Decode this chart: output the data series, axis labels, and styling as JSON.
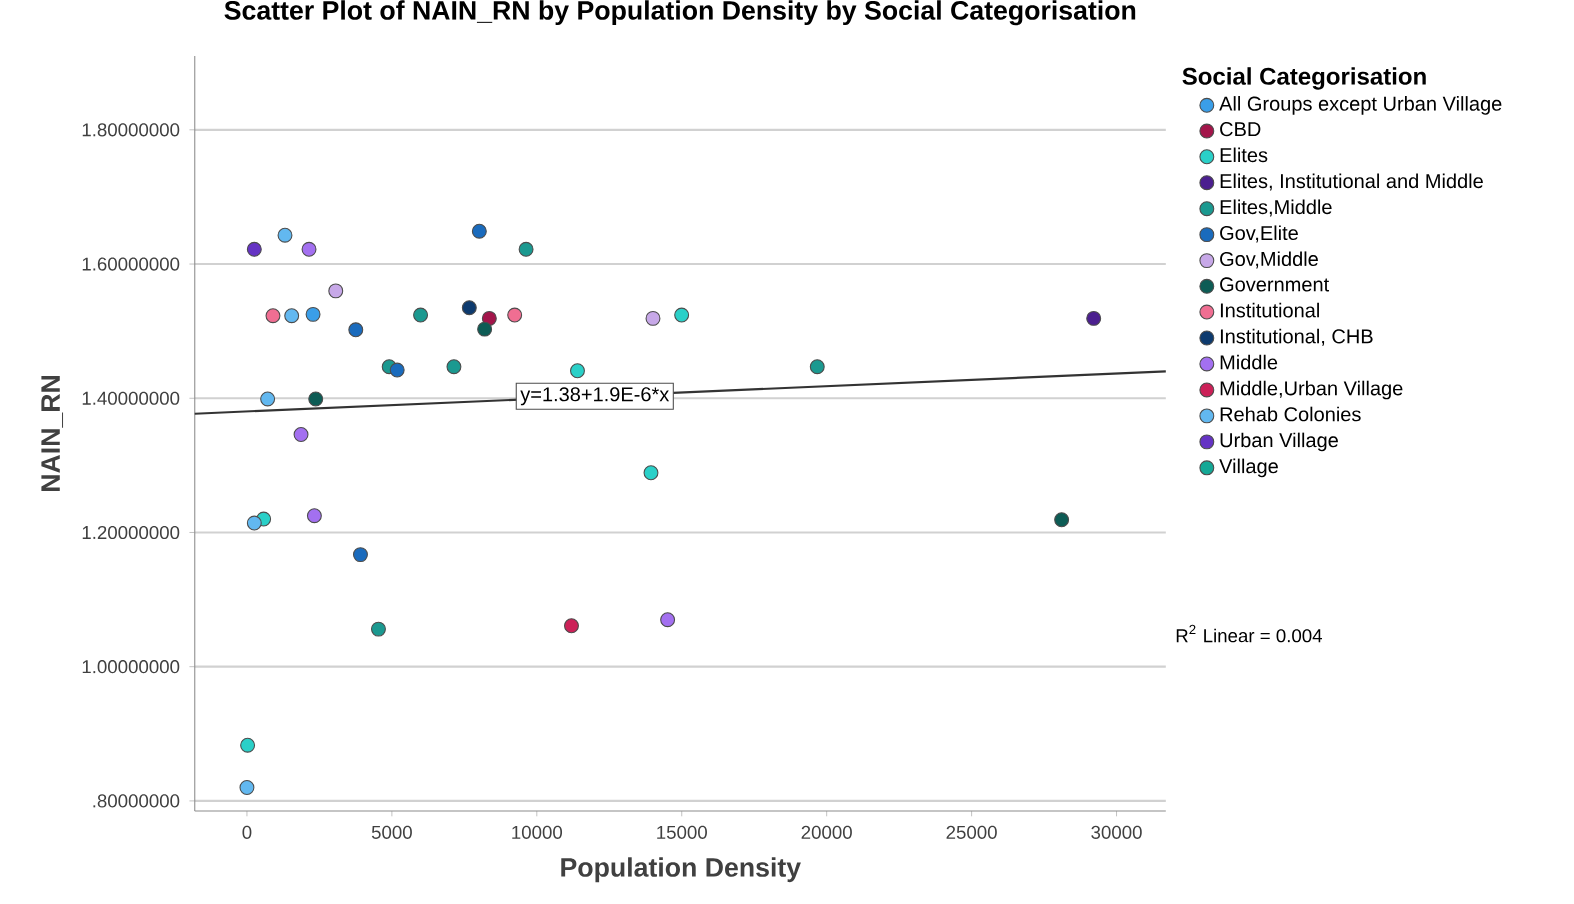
{
  "chart_data": {
    "type": "scatter",
    "title": "Scatter Plot of NAIN_RN by Population Density by Social Categorisation",
    "xlabel": "Population Density",
    "ylabel": "NAIN_RN",
    "legend_title": "Social Categorisation",
    "legend": "right",
    "grid": "y",
    "marker": "circle",
    "xlim": [
      -1800,
      31700
    ],
    "ylim": [
      0.785,
      1.91
    ],
    "xticks": [
      0,
      5000,
      10000,
      15000,
      20000,
      25000,
      30000
    ],
    "yticks": [
      {
        "value": 0.8,
        "label": ".80000000"
      },
      {
        "value": 1.0,
        "label": "1.00000000"
      },
      {
        "value": 1.2,
        "label": "1.20000000"
      },
      {
        "value": 1.4,
        "label": "1.40000000"
      },
      {
        "value": 1.6,
        "label": "1.60000000"
      },
      {
        "value": 1.8,
        "label": "1.80000000"
      }
    ],
    "annotations": [
      {
        "text": "y=1.38+1.9E-6*x",
        "x": 12000,
        "y": 1.403
      },
      "R$^{2}$ Linear = 0.004"
    ],
    "series": [
      {
        "name": "All Groups except Urban Village",
        "color": "#3a9ee8",
        "x": [
          2281
        ],
        "values": [
          1.525
        ]
      },
      {
        "name": "CBD",
        "color": "#a3154a",
        "x": [
          8362
        ],
        "values": [
          1.519
        ]
      },
      {
        "name": "Elites",
        "color": "#2ad0c8",
        "x": [
          576,
          23,
          11403,
          14997,
          13939
        ],
        "values": [
          1.22,
          0.883,
          1.441,
          1.524,
          1.289
        ]
      },
      {
        "name": "Elites, Institutional and Middle",
        "color": "#4b1f8f",
        "x": [
          29212
        ],
        "values": [
          1.519
        ]
      },
      {
        "name": "Elites,Middle",
        "color": "#1b9990",
        "x": [
          9630,
          5990,
          4907,
          7141,
          4537,
          19675
        ],
        "values": [
          1.622,
          1.524,
          1.447,
          1.447,
          1.056,
          1.447
        ]
      },
      {
        "name": "Gov,Elite",
        "color": "#1a6bbd",
        "x": [
          3755,
          8017,
          5183,
          3916
        ],
        "values": [
          1.502,
          1.649,
          1.442,
          1.167
        ]
      },
      {
        "name": "Gov,Middle",
        "color": "#c7a8e8",
        "x": [
          3064,
          14008
        ],
        "values": [
          1.56,
          1.519
        ]
      },
      {
        "name": "Government",
        "color": "#0d5c55",
        "x": [
          8200,
          2373,
          28106
        ],
        "values": [
          1.503,
          1.399,
          1.219
        ]
      },
      {
        "name": "Institutional",
        "color": "#f06e92",
        "x": [
          898,
          9237
        ],
        "values": [
          1.523,
          1.524
        ]
      },
      {
        "name": "Institutional, CHB",
        "color": "#0d3a6e",
        "x": [
          7671
        ],
        "values": [
          1.535
        ]
      },
      {
        "name": "Middle",
        "color": "#a370f0",
        "x": [
          2142,
          1866,
          2327,
          14513
        ],
        "values": [
          1.622,
          1.346,
          1.225,
          1.07
        ]
      },
      {
        "name": "Middle,Urban Village",
        "color": "#cc2158",
        "x": [
          11196
        ],
        "values": [
          1.061
        ]
      },
      {
        "name": "Rehab Colonies",
        "color": "#62b8f0",
        "x": [
          1313,
          1544,
          714,
          254,
          0
        ],
        "values": [
          1.643,
          1.523,
          1.399,
          1.214,
          0.82
        ]
      },
      {
        "name": "Urban Village",
        "color": "#6533c4",
        "x": [
          254
        ],
        "values": [
          1.622
        ]
      },
      {
        "name": "Village",
        "color": "#14a896"
      },
      {
        "type": "line",
        "color": "#333333",
        "marker": "none",
        "x": [
          -1800,
          31700
        ],
        "values": [
          1.377,
          1.44
        ]
      }
    ]
  }
}
